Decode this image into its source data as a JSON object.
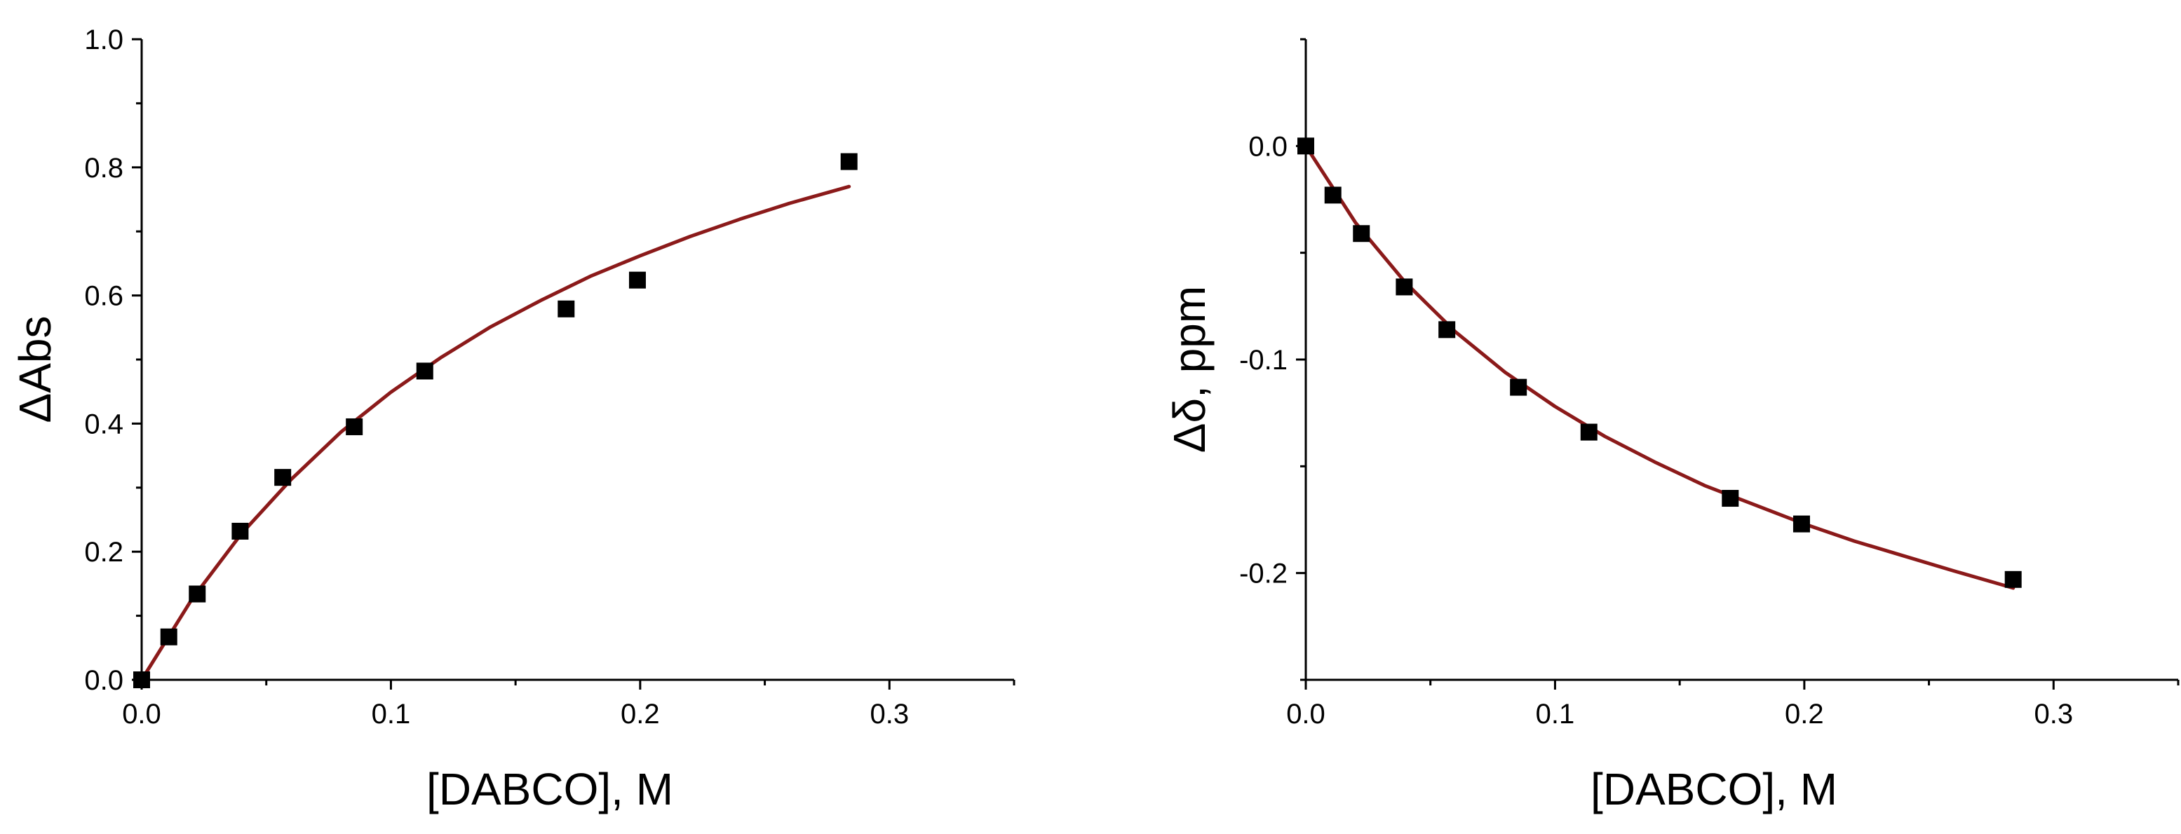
{
  "chart_data": [
    {
      "type": "scatter",
      "title": "",
      "xlabel": "[DABCO], M",
      "ylabel": "ΔAbs",
      "xlim": [
        0.0,
        0.35
      ],
      "ylim": [
        0.0,
        1.0
      ],
      "x_ticks": [
        0.0,
        0.1,
        0.2,
        0.3
      ],
      "x_tick_labels": [
        "0.0",
        "0.1",
        "0.2",
        "0.3"
      ],
      "x_minor_ticks": [
        0.05,
        0.15,
        0.25,
        0.35
      ],
      "y_ticks": [
        0.0,
        0.2,
        0.4,
        0.6,
        0.8,
        1.0
      ],
      "y_tick_labels": [
        "0.0",
        "0.2",
        "0.4",
        "0.6",
        "0.8",
        "1.0"
      ],
      "y_minor_ticks": [
        0.1,
        0.3,
        0.5,
        0.7,
        0.9
      ],
      "grid": false,
      "legend": "none",
      "series": [
        {
          "marker": "square",
          "color": "#000000",
          "x": [
            0.0,
            0.0109,
            0.0223,
            0.0395,
            0.0566,
            0.0853,
            0.1136,
            0.1703,
            0.1989,
            0.2838
          ],
          "y": [
            0.0,
            0.067,
            0.134,
            0.232,
            0.316,
            0.395,
            0.482,
            0.579,
            0.624,
            0.809
          ]
        },
        {
          "line": "fit",
          "color": "#8b1a1a",
          "x": [
            0.0,
            0.02,
            0.04,
            0.06,
            0.08,
            0.1,
            0.12,
            0.14,
            0.16,
            0.18,
            0.2,
            0.22,
            0.24,
            0.26,
            0.2838
          ],
          "y": [
            0.0,
            0.125,
            0.228,
            0.313,
            0.387,
            0.449,
            0.503,
            0.551,
            0.592,
            0.63,
            0.662,
            0.692,
            0.719,
            0.744,
            0.77
          ]
        }
      ]
    },
    {
      "type": "scatter",
      "title": "",
      "xlabel": "[DABCO], M",
      "ylabel": "Δδ, ppm",
      "xlim": [
        0.0,
        0.35
      ],
      "ylim": [
        -0.25,
        0.05
      ],
      "x_ticks": [
        0.0,
        0.1,
        0.2,
        0.3
      ],
      "x_tick_labels": [
        "0.0",
        "0.1",
        "0.2",
        "0.3"
      ],
      "x_minor_ticks": [
        0.05,
        0.15,
        0.25,
        0.35
      ],
      "y_ticks": [
        0.0,
        -0.1,
        -0.2
      ],
      "y_tick_labels": [
        "0.0",
        "-0.1",
        "-0.2"
      ],
      "y_minor_ticks": [
        0.05,
        -0.05,
        -0.15,
        -0.25
      ],
      "grid": false,
      "legend": "none",
      "series": [
        {
          "marker": "square",
          "color": "#000000",
          "x": [
            0.0,
            0.0109,
            0.0223,
            0.0395,
            0.0566,
            0.0853,
            0.1136,
            0.1703,
            0.1989,
            0.2838
          ],
          "y": [
            0.0,
            -0.023,
            -0.041,
            -0.066,
            -0.086,
            -0.113,
            -0.134,
            -0.165,
            -0.177,
            -0.203
          ]
        },
        {
          "line": "fit",
          "color": "#8b1a1a",
          "x": [
            0.0,
            0.02,
            0.04,
            0.06,
            0.08,
            0.1,
            0.12,
            0.14,
            0.16,
            0.18,
            0.2,
            0.22,
            0.24,
            0.26,
            0.2838
          ],
          "y": [
            0.0,
            -0.036,
            -0.064,
            -0.087,
            -0.106,
            -0.122,
            -0.136,
            -0.148,
            -0.159,
            -0.168,
            -0.177,
            -0.185,
            -0.192,
            -0.199,
            -0.207
          ]
        }
      ]
    }
  ]
}
